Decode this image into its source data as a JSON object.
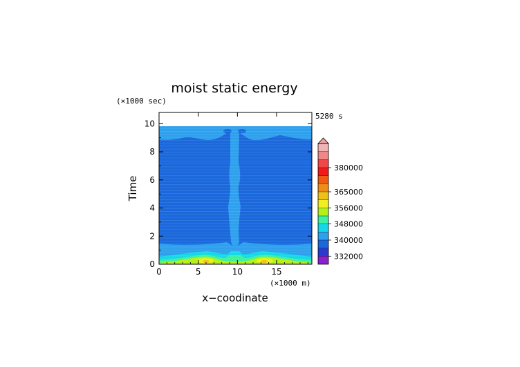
{
  "chart_data": {
    "type": "heatmap",
    "title": "moist static energy",
    "xlabel": "x−coodinate",
    "ylabel": "Time",
    "x_unit": "(×1000 m)",
    "y_unit": "(×1000 sec)",
    "time_label": "5280 s",
    "xlim": [
      0,
      19.5
    ],
    "ylim": [
      0,
      10.8
    ],
    "xticks": [
      0,
      5,
      10,
      15
    ],
    "yticks": [
      0,
      2,
      4,
      6,
      8,
      10
    ],
    "colorbar": {
      "levels": [
        328000,
        332000,
        336000,
        340000,
        344000,
        348000,
        352000,
        356000,
        360000,
        365000,
        370000,
        375000,
        380000,
        385000,
        390000
      ],
      "colors": [
        "#8c1fd0",
        "#2a3ad0",
        "#1a68dc",
        "#2ea0ee",
        "#14d8e8",
        "#3ef0a0",
        "#b4f01a",
        "#f0f020",
        "#f0c018",
        "#f08c18",
        "#f05a14",
        "#f01a1a",
        "#f04848",
        "#f08888",
        "#f0b4b4"
      ],
      "tick_labels": [
        "332000",
        "340000",
        "348000",
        "356000",
        "365000",
        "380000"
      ]
    },
    "regions": [
      {
        "value": 338000,
        "note": "background, data extends to t=9.8"
      },
      {
        "value": 341000,
        "note": "upper layer t 8.9-9.8 and central column x~8.9-10.8"
      },
      {
        "value": 346000,
        "note": "near-surface band t<0.5"
      },
      {
        "value": 352000,
        "note": "surface maxima near x=6 and x=14"
      }
    ]
  }
}
